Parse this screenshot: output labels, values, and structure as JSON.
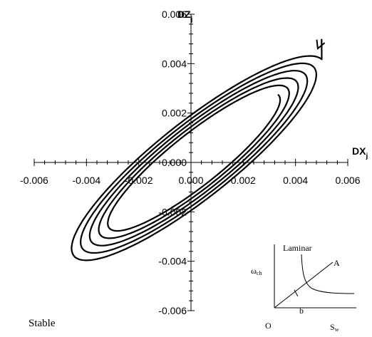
{
  "chart_data": {
    "type": "line",
    "xlabel": "DX",
    "xlabel_sub": "j",
    "ylabel": "DZ",
    "ylabel_sub": "j",
    "xlim": [
      -0.006,
      0.006
    ],
    "ylim": [
      -0.006,
      0.006
    ],
    "x_ticks": [
      "-0.006",
      "-0.004",
      "-0.002",
      "0.000",
      "0.002",
      "0.004",
      "0.006"
    ],
    "y_ticks": [
      "-0.006",
      "-0.004",
      "-0.002",
      "0.000",
      "0.002",
      "0.004",
      "0.006"
    ],
    "grid": false,
    "series": [
      {
        "start": [
          0.005,
          0.005
        ],
        "turns": 5,
        "a_start": 0.0063,
        "a_end": 0.0041,
        "b_start": 0.00157,
        "b_end": 0.00095,
        "angle_deg": 40,
        "center": [
          0.0002,
          0.0001
        ]
      }
    ],
    "annotation_text": "Stable",
    "inset": {
      "origin_label": "O",
      "y_label": "ω",
      "y_label_sub": "ch",
      "x_label": "S",
      "x_label_sub": "w",
      "curve_label": "Laminar",
      "line_label": "A",
      "point_label": "b"
    }
  }
}
